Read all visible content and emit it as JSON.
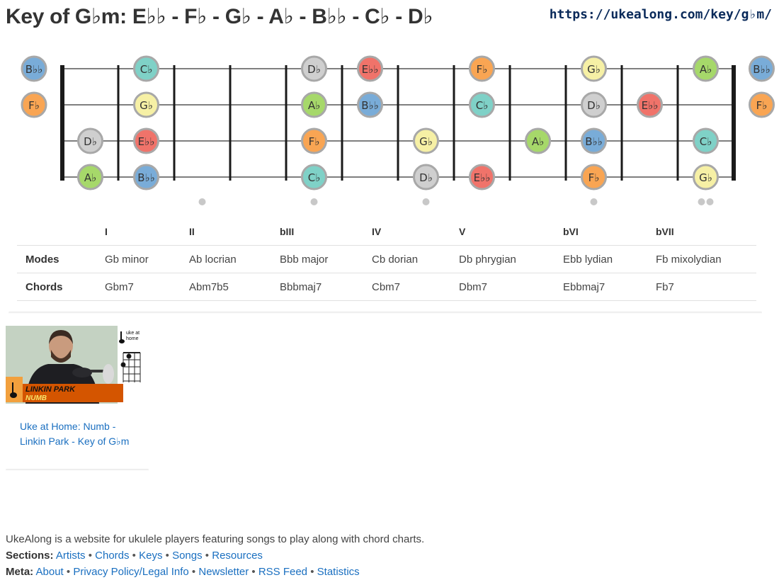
{
  "header": {
    "title": "Key of G♭m: E♭♭ - F♭ - G♭ - A♭ - B♭♭ - C♭ - D♭",
    "url": "https://ukealong.com/key/g♭m/"
  },
  "fretboard": {
    "colors": {
      "C": "#7fd1c7",
      "D": "#cfcfcf",
      "E": "#f0736a",
      "F": "#f9a553",
      "G": "#f6f0a5",
      "A": "#a6d86a",
      "B": "#79acd8"
    },
    "open_notes": [
      "B♭♭",
      "F♭",
      "",
      ""
    ],
    "strings": [
      [
        "",
        "C♭",
        "",
        "",
        "D♭",
        "E♭♭",
        "",
        "F♭",
        "",
        "G♭",
        "",
        "A♭",
        "B♭♭"
      ],
      [
        "",
        "G♭",
        "",
        "",
        "A♭",
        "B♭♭",
        "",
        "C♭",
        "",
        "D♭",
        "E♭♭",
        "",
        "F♭"
      ],
      [
        "D♭",
        "E♭♭",
        "",
        "",
        "F♭",
        "",
        "G♭",
        "",
        "A♭",
        "B♭♭",
        "",
        "C♭",
        ""
      ],
      [
        "A♭",
        "B♭♭",
        "",
        "",
        "C♭",
        "",
        "D♭",
        "E♭♭",
        "",
        "F♭",
        "",
        "G♭",
        ""
      ]
    ],
    "fret_markers": [
      3,
      5,
      7,
      10
    ],
    "double_marker": 12
  },
  "modes_table": {
    "degrees": [
      "I",
      "II",
      "bIII",
      "IV",
      "V",
      "bVI",
      "bVII"
    ],
    "modes_label": "Modes",
    "modes": [
      "Gb minor",
      "Ab locrian",
      "Bbb major",
      "Cb dorian",
      "Db phrygian",
      "Ebb lydian",
      "Fb mixolydian"
    ],
    "chords_label": "Chords",
    "chords": [
      "Gbm7",
      "Abm7b5",
      "Bbbmaj7",
      "Cbm7",
      "Dbm7",
      "Ebbmaj7",
      "Fb7"
    ]
  },
  "video": {
    "banner_artist": "LINKIN PARK",
    "banner_song": "NUMB",
    "logo_text_1": "uke at",
    "logo_text_2": "home",
    "link_text": "Uke at Home: Numb - Linkin Park - Key of G♭m"
  },
  "footer": {
    "description": "UkeAlong is a website for ukulele players featuring songs to play along with chord charts.",
    "sections_label": "Sections:",
    "sections": [
      "Artists",
      "Chords",
      "Keys",
      "Songs",
      "Resources"
    ],
    "meta_label": "Meta:",
    "meta": [
      "About",
      "Privacy Policy/Legal Info",
      "Newsletter",
      "RSS Feed",
      "Statistics"
    ]
  }
}
